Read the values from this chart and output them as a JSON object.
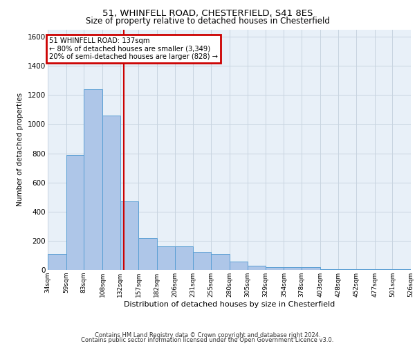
{
  "title_line1": "51, WHINFELL ROAD, CHESTERFIELD, S41 8ES",
  "title_line2": "Size of property relative to detached houses in Chesterfield",
  "xlabel": "Distribution of detached houses by size in Chesterfield",
  "ylabel": "Number of detached properties",
  "footer_line1": "Contains HM Land Registry data © Crown copyright and database right 2024.",
  "footer_line2": "Contains public sector information licensed under the Open Government Licence v3.0.",
  "annotation_title": "51 WHINFELL ROAD: 137sqm",
  "annotation_line1": "← 80% of detached houses are smaller (3,349)",
  "annotation_line2": "20% of semi-detached houses are larger (828) →",
  "subject_value": 137,
  "bar_edges": [
    34,
    59,
    83,
    108,
    132,
    157,
    182,
    206,
    231,
    255,
    280,
    305,
    329,
    354,
    378,
    403,
    428,
    452,
    477,
    501,
    526
  ],
  "bar_heights": [
    110,
    790,
    1240,
    1060,
    470,
    220,
    160,
    160,
    125,
    110,
    55,
    30,
    20,
    20,
    20,
    5,
    5,
    5,
    5,
    5
  ],
  "bar_color": "#aec6e8",
  "bar_edge_color": "#5a9fd4",
  "vline_color": "#cc0000",
  "annotation_box_color": "#cc0000",
  "grid_color": "#c8d4e0",
  "bg_color": "#e8f0f8",
  "ylim": [
    0,
    1650
  ],
  "yticks": [
    0,
    200,
    400,
    600,
    800,
    1000,
    1200,
    1400,
    1600
  ]
}
